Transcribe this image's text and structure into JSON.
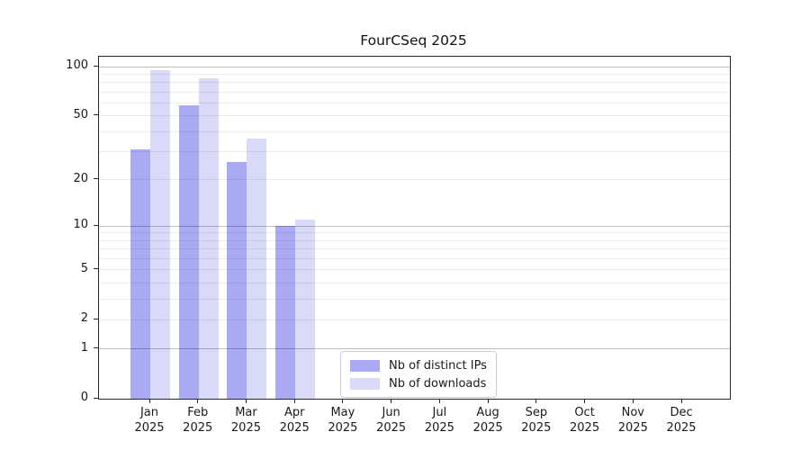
{
  "title": "FourCSeq 2025",
  "legend": {
    "items": [
      {
        "label": "Nb of distinct IPs",
        "color": "#a9a9f4"
      },
      {
        "label": "Nb of downloads",
        "color": "#d9d9f8"
      }
    ]
  },
  "chart_data": {
    "type": "bar",
    "title": "FourCSeq 2025",
    "categories": [
      {
        "line1": "Jan",
        "line2": "2025"
      },
      {
        "line1": "Feb",
        "line2": "2025"
      },
      {
        "line1": "Mar",
        "line2": "2025"
      },
      {
        "line1": "Apr",
        "line2": "2025"
      },
      {
        "line1": "May",
        "line2": "2025"
      },
      {
        "line1": "Jun",
        "line2": "2025"
      },
      {
        "line1": "Jul",
        "line2": "2025"
      },
      {
        "line1": "Aug",
        "line2": "2025"
      },
      {
        "line1": "Sep",
        "line2": "2025"
      },
      {
        "line1": "Oct",
        "line2": "2025"
      },
      {
        "line1": "Nov",
        "line2": "2025"
      },
      {
        "line1": "Dec",
        "line2": "2025"
      }
    ],
    "series": [
      {
        "name": "Nb of distinct IPs",
        "color": "#a9a9f4",
        "values": [
          31,
          58,
          26,
          10,
          0,
          0,
          0,
          0,
          0,
          0,
          0,
          0
        ]
      },
      {
        "name": "Nb of downloads",
        "color": "#d9d9f8",
        "values": [
          95,
          85,
          36,
          11,
          0,
          0,
          0,
          0,
          0,
          0,
          0,
          0
        ]
      }
    ],
    "yscale": "log1p",
    "yticks": [
      0,
      1,
      2,
      5,
      10,
      20,
      50,
      100
    ],
    "ylim": [
      0,
      115
    ],
    "grid_minor": [
      2,
      3,
      4,
      5,
      6,
      7,
      8,
      9,
      20,
      30,
      40,
      50,
      60,
      70,
      80,
      90
    ],
    "grid_major": [
      1,
      10,
      100
    ],
    "xlabel": "",
    "ylabel": "",
    "legend_position": "bottom-center",
    "grid": "on"
  }
}
